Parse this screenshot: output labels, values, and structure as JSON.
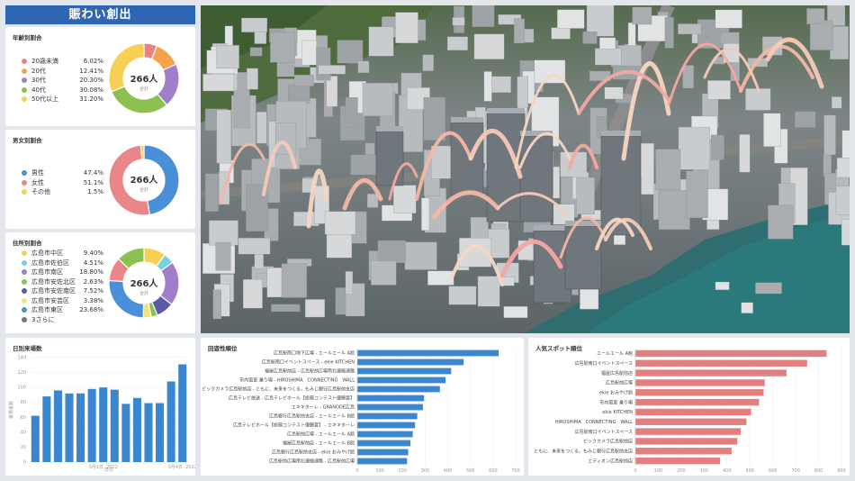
{
  "title": "賑わい創出",
  "age": {
    "title": "年齢別割合",
    "total": "266人",
    "total_label": "合計",
    "items": [
      {
        "label": "20歳未満",
        "pct": "6.02%",
        "value": 6.02,
        "color": "#ef7f86"
      },
      {
        "label": "20代",
        "pct": "12.41%",
        "value": 12.41,
        "color": "#f5a24d"
      },
      {
        "label": "30代",
        "pct": "20.30%",
        "value": 20.3,
        "color": "#a07ec9"
      },
      {
        "label": "40代",
        "pct": "30.08%",
        "value": 30.08,
        "color": "#8cc152"
      },
      {
        "label": "50代以上",
        "pct": "31.20%",
        "value": 31.2,
        "color": "#f6cf53"
      }
    ]
  },
  "gender": {
    "title": "男女別割合",
    "total": "266人",
    "total_label": "合計",
    "items": [
      {
        "label": "男性",
        "pct": "47.4%",
        "value": 47.4,
        "color": "#4a90d9"
      },
      {
        "label": "女性",
        "pct": "51.1%",
        "value": 51.1,
        "color": "#e8868a"
      },
      {
        "label": "その他",
        "pct": "1.5%",
        "value": 1.5,
        "color": "#f6cf53"
      }
    ]
  },
  "residence": {
    "title": "住所別割合",
    "total": "266人",
    "total_label": "合計",
    "items": [
      {
        "label": "広島市中区",
        "pct": "9.40%",
        "value": 9.4,
        "color": "#f6cf53"
      },
      {
        "label": "広島市佐伯区",
        "pct": "4.51%",
        "value": 4.51,
        "color": "#77d0df"
      },
      {
        "label": "広島市南区",
        "pct": "18.80%",
        "value": 18.8,
        "color": "#a07ec9"
      },
      {
        "label": "広島市安佐北区",
        "pct": "2.63%",
        "value": 2.63,
        "color": "#8cc152"
      },
      {
        "label": "広島市安佐南区",
        "pct": "7.52%",
        "value": 7.52,
        "color": "#5a5aa8"
      },
      {
        "label": "広島市安芸区",
        "pct": "3.38%",
        "value": 3.38,
        "color": "#f6e27a"
      },
      {
        "label": "広島市東区",
        "pct": "23.68%",
        "value": 23.68,
        "color": "#4a90d9"
      },
      {
        "label": "3さらに",
        "pct": "",
        "value": 30.08,
        "color": "#777777"
      }
    ],
    "extra_segments": [
      {
        "value": 10,
        "color": "#e8868a"
      },
      {
        "value": 12,
        "color": "#8cc152"
      }
    ]
  },
  "chart_data": [
    {
      "type": "bar",
      "title": "日別来場数",
      "ylabel": "来場者数",
      "xlabel": "日付",
      "ylim": [
        0,
        140
      ],
      "yticks": [
        "0",
        "20",
        "40",
        "60",
        "80",
        "100",
        "120",
        "140"
      ],
      "xticks": [
        "3月1日, 2022",
        "3月4日, 2022"
      ],
      "values": [
        62,
        88,
        96,
        92,
        92,
        98,
        100,
        97,
        78,
        86,
        79,
        79,
        108,
        131
      ],
      "color": "#3b87cf"
    },
    {
      "type": "bar",
      "orientation": "horizontal",
      "title": "回遊性順位",
      "xlim": [
        0,
        700
      ],
      "xticks": [
        "0",
        "100",
        "200",
        "300",
        "400",
        "500",
        "600",
        "700"
      ],
      "categories": [
        "広島駅南口地下広場 - エールエール A館",
        "広島駅南口イベントスペース - ekie KITCHEN",
        "福屋広島駅前店 - 広島駅前広場南北連絡通路",
        "市内電車 乗り場 - HIROSHIMA　CONNECTING　WALL",
        "ビックカメラ広島駅前店 - ともに、未来をつくる。もみじ銀行広島駅前支店",
        "広島テレビ放送 - 広島テレビホール【総務コンテスト優勝賞】",
        "エキキターレ - GRANODE広島",
        "広島銀行広島駅前支店 - エールエール B館",
        "広島テレビホール【総務コンテスト優勝賞】 - エキキターレ",
        "広島駅前広場 - エールエール A館",
        "福屋広島駅前店 - エールエール B館",
        "広島銀行広島駅前支店 - ekie おみやげ館",
        "広島駅前広場南北連絡通路 - 広島駅前広場"
      ],
      "values": [
        625,
        470,
        415,
        390,
        365,
        295,
        290,
        265,
        255,
        245,
        235,
        225,
        220
      ],
      "color": "#3b87cf"
    },
    {
      "type": "bar",
      "orientation": "horizontal",
      "title": "人気スポット順位",
      "xlim": [
        0,
        900
      ],
      "xticks": [
        "0",
        "100",
        "200",
        "300",
        "400",
        "500",
        "600",
        "700",
        "800",
        "900"
      ],
      "categories": [
        "エールエール A館",
        "広島駅南口イベントスペース",
        "福屋広島駅前店",
        "広島駅前広場",
        "ekie おみやげ館",
        "市内電車 乗り場",
        "ekie KITCHEN",
        "HIROSHIMA　CONNECTING　WALL",
        "広島駅南口イベントスペース",
        "ビックカメラ広島駅前店",
        "ともに、未来をつくる。もみじ銀行広島駅前支店",
        "エディオン広島駅前店"
      ],
      "values": [
        835,
        750,
        660,
        565,
        560,
        540,
        505,
        485,
        460,
        445,
        420,
        370
      ],
      "color": "#e47f7f"
    }
  ]
}
